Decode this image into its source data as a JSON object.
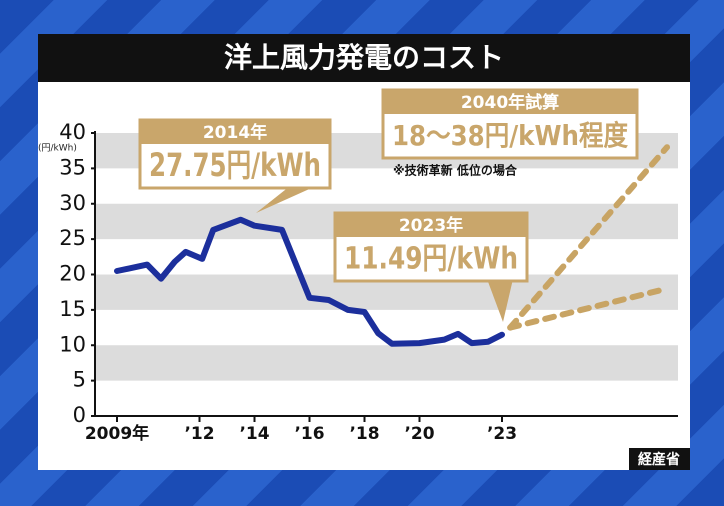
{
  "chart_data": {
    "type": "line",
    "title": "洋上風力発電のコスト",
    "y_unit": "(円/kWh)",
    "source": "経産省",
    "xlim": [
      2008.2,
      2029.4
    ],
    "xticks": [
      {
        "value": 2009,
        "label": "2009年"
      },
      {
        "value": 2012,
        "label": "’12"
      },
      {
        "value": 2014,
        "label": "’14"
      },
      {
        "value": 2016,
        "label": "’16"
      },
      {
        "value": 2018,
        "label": "’18"
      },
      {
        "value": 2020,
        "label": "’20"
      },
      {
        "value": 2023,
        "label": "’23"
      }
    ],
    "ylim": [
      0,
      40
    ],
    "yticks": [
      0,
      5,
      10,
      15,
      20,
      25,
      30,
      35,
      40
    ],
    "grid": "bands",
    "series": [
      {
        "color": "#1c2f9c",
        "style": "solid",
        "x": [
          2009,
          2010.1,
          2010.6,
          2011.1,
          2011.5,
          2012.1,
          2012.5,
          2013.5,
          2014,
          2015,
          2016,
          2016.7,
          2017.4,
          2018,
          2018.5,
          2019,
          2020,
          2020.9,
          2021.4,
          2021.9,
          2022.5,
          2023
        ],
        "values": [
          20.5,
          21.4,
          19.4,
          21.8,
          23.2,
          22.2,
          26.3,
          27.75,
          26.9,
          26.3,
          16.7,
          16.4,
          15,
          14.7,
          11.7,
          10.2,
          10.3,
          10.8,
          11.6,
          10.3,
          10.5,
          11.49
        ]
      },
      {
        "color": "#c8a464",
        "style": "dotted",
        "x": [
          2023.3,
          2029
        ],
        "values": [
          12.5,
          38
        ]
      },
      {
        "color": "#c8a464",
        "style": "dotted",
        "x": [
          2023.3,
          2029
        ],
        "values": [
          12.5,
          18
        ]
      }
    ],
    "annotations": [
      {
        "label": "2014年",
        "text": "27.75円/kWh"
      },
      {
        "label": "2023年",
        "text": "11.49円/kWh"
      },
      {
        "label": "2040年試算",
        "text": "18〜38円/kWh程度",
        "note": "※技術革新 低位の場合"
      }
    ]
  }
}
